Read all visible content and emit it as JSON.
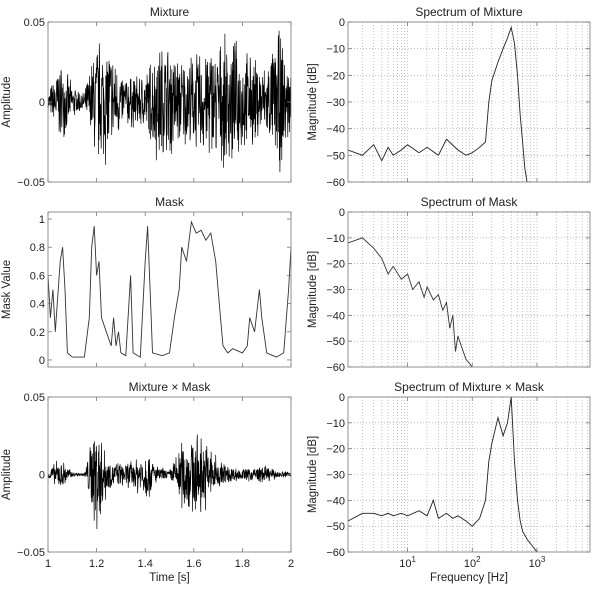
{
  "chart_data": [
    {
      "type": "line",
      "title": "Mixture",
      "xlabel": "",
      "ylabel": "Amplitude",
      "xlim": [
        1,
        2
      ],
      "ylim": [
        -0.05,
        0.05
      ],
      "xticks": [
        1,
        1.2,
        1.4,
        1.6,
        1.8,
        2
      ],
      "show_xtick_labels": false,
      "yticks": [
        -0.05,
        0,
        0.05
      ],
      "ytick_labels": [
        "−0.05",
        "0",
        "0.05"
      ],
      "grid": false,
      "color": "#000000",
      "envelope_t": [
        1.0,
        1.05,
        1.1,
        1.15,
        1.2,
        1.25,
        1.3,
        1.35,
        1.4,
        1.45,
        1.5,
        1.55,
        1.6,
        1.65,
        1.7,
        1.75,
        1.8,
        1.85,
        1.9,
        1.95,
        2.0
      ],
      "envelope_amp": [
        0.006,
        0.028,
        0.012,
        0.006,
        0.045,
        0.042,
        0.02,
        0.018,
        0.02,
        0.042,
        0.04,
        0.03,
        0.032,
        0.04,
        0.04,
        0.045,
        0.036,
        0.03,
        0.025,
        0.05,
        0.02
      ]
    },
    {
      "type": "line",
      "title": "Mask",
      "xlabel": "",
      "ylabel": "Mask Value",
      "xlim": [
        1,
        2
      ],
      "ylim": [
        -0.05,
        1.05
      ],
      "xticks": [
        1,
        1.2,
        1.4,
        1.6,
        1.8,
        2
      ],
      "show_xtick_labels": false,
      "yticks": [
        0,
        0.2,
        0.4,
        0.6,
        0.8,
        1
      ],
      "ytick_labels": [
        "0",
        "0.2",
        "0.4",
        "0.6",
        "0.8",
        "1"
      ],
      "grid": false,
      "color": "#333333",
      "t": [
        1.0,
        1.01,
        1.02,
        1.03,
        1.05,
        1.06,
        1.07,
        1.08,
        1.1,
        1.15,
        1.17,
        1.18,
        1.19,
        1.2,
        1.21,
        1.22,
        1.24,
        1.26,
        1.27,
        1.28,
        1.29,
        1.3,
        1.32,
        1.34,
        1.35,
        1.38,
        1.4,
        1.41,
        1.42,
        1.43,
        1.47,
        1.5,
        1.52,
        1.54,
        1.55,
        1.57,
        1.59,
        1.61,
        1.63,
        1.65,
        1.67,
        1.69,
        1.7,
        1.71,
        1.72,
        1.74,
        1.76,
        1.8,
        1.82,
        1.83,
        1.85,
        1.87,
        1.88,
        1.9,
        1.94,
        1.97,
        1.99,
        2.0
      ],
      "values": [
        0.6,
        0.3,
        0.5,
        0.2,
        0.7,
        0.8,
        0.5,
        0.05,
        0.02,
        0.02,
        0.3,
        0.8,
        0.95,
        0.6,
        0.7,
        0.3,
        0.2,
        0.1,
        0.3,
        0.1,
        0.2,
        0.05,
        0.03,
        0.6,
        0.05,
        0.02,
        0.7,
        0.95,
        0.5,
        0.05,
        0.03,
        0.05,
        0.3,
        0.5,
        0.8,
        0.7,
        0.98,
        0.9,
        0.92,
        0.85,
        0.9,
        0.7,
        0.5,
        0.3,
        0.1,
        0.05,
        0.08,
        0.05,
        0.1,
        0.3,
        0.2,
        0.5,
        0.3,
        0.05,
        0.02,
        0.05,
        0.5,
        0.8
      ]
    },
    {
      "type": "line",
      "title": "Mixture × Mask",
      "xlabel": "Time [s]",
      "ylabel": "Amplitude",
      "xlim": [
        1,
        2
      ],
      "ylim": [
        -0.05,
        0.05
      ],
      "xticks": [
        1,
        1.2,
        1.4,
        1.6,
        1.8,
        2
      ],
      "xtick_labels": [
        "1",
        "1.2",
        "1.4",
        "1.6",
        "1.8",
        "2"
      ],
      "show_xtick_labels": true,
      "yticks": [
        -0.05,
        0,
        0.05
      ],
      "ytick_labels": [
        "−0.05",
        "0",
        "0.05"
      ],
      "grid": false,
      "color": "#000000",
      "envelope_t": [
        1.0,
        1.05,
        1.1,
        1.15,
        1.2,
        1.25,
        1.3,
        1.35,
        1.4,
        1.45,
        1.5,
        1.55,
        1.6,
        1.65,
        1.7,
        1.75,
        1.8,
        1.85,
        1.9,
        1.95,
        2.0
      ],
      "envelope_amp": [
        0.003,
        0.012,
        0.002,
        0.001,
        0.045,
        0.01,
        0.008,
        0.01,
        0.02,
        0.006,
        0.003,
        0.025,
        0.03,
        0.025,
        0.012,
        0.006,
        0.004,
        0.006,
        0.006,
        0.002,
        0.003
      ]
    },
    {
      "type": "line",
      "title": "Spectrum of Mixture",
      "xlabel": "",
      "ylabel": "Magnitude [dB]",
      "xscale": "log",
      "xlim": [
        1.2,
        6600
      ],
      "ylim": [
        -60,
        0
      ],
      "xticks": [
        10,
        100,
        1000
      ],
      "show_xtick_labels": false,
      "yticks": [
        -60,
        -50,
        -40,
        -30,
        -20,
        -10,
        0
      ],
      "ytick_labels": [
        "−60",
        "−50",
        "−40",
        "−30",
        "−20",
        "−10",
        "0"
      ],
      "grid": true,
      "color": "#222222",
      "freq": [
        1.2,
        2,
        3,
        4,
        5,
        6,
        8,
        10,
        15,
        20,
        30,
        40,
        60,
        80,
        100,
        130,
        160,
        180,
        200,
        250,
        300,
        350,
        400,
        450,
        500,
        550,
        600,
        650,
        700,
        800
      ],
      "db": [
        -48,
        -50,
        -46,
        -52,
        -47,
        -50,
        -48,
        -46,
        -49,
        -47,
        -50,
        -44,
        -48,
        -50,
        -49,
        -47,
        -45,
        -30,
        -22,
        -15,
        -10,
        -6,
        -2,
        -8,
        -20,
        -35,
        -45,
        -55,
        -60,
        -60
      ]
    },
    {
      "type": "line",
      "title": "Spectrum of Mask",
      "xlabel": "",
      "ylabel": "Magnitude [dB]",
      "xscale": "log",
      "xlim": [
        1.2,
        6600
      ],
      "ylim": [
        -60,
        0
      ],
      "xticks": [
        10,
        100,
        1000
      ],
      "show_xtick_labels": false,
      "yticks": [
        -60,
        -50,
        -40,
        -30,
        -20,
        -10,
        0
      ],
      "ytick_labels": [
        "−60",
        "−50",
        "−40",
        "−30",
        "−20",
        "−10",
        "0"
      ],
      "grid": true,
      "color": "#333333",
      "freq": [
        1.2,
        2,
        3,
        4,
        5,
        6,
        8,
        10,
        12,
        15,
        18,
        20,
        25,
        30,
        35,
        40,
        45,
        50,
        55,
        60,
        70,
        80,
        100
      ],
      "db": [
        -12,
        -10,
        -14,
        -18,
        -24,
        -21,
        -26,
        -24,
        -30,
        -27,
        -33,
        -29,
        -34,
        -32,
        -38,
        -35,
        -45,
        -40,
        -54,
        -48,
        -53,
        -57,
        -60
      ]
    },
    {
      "type": "line",
      "title": "Spectrum of Mixture × Mask",
      "xlabel": "Frequency [Hz]",
      "ylabel": "Magnitude [dB]",
      "xscale": "log",
      "xlim": [
        1.2,
        6600
      ],
      "ylim": [
        -60,
        0
      ],
      "xticks": [
        10,
        100,
        1000
      ],
      "xtick_labels": [
        "1",
        "2",
        "3"
      ],
      "show_xtick_labels": true,
      "yticks": [
        -60,
        -50,
        -40,
        -30,
        -20,
        -10,
        0
      ],
      "ytick_labels": [
        "−60",
        "−50",
        "−40",
        "−30",
        "−20",
        "−10",
        "0"
      ],
      "grid": true,
      "color": "#222222",
      "freq": [
        1.2,
        2,
        3,
        4,
        5,
        6,
        8,
        10,
        15,
        20,
        25,
        30,
        40,
        50,
        60,
        80,
        100,
        130,
        160,
        180,
        200,
        250,
        300,
        350,
        400,
        450,
        500,
        550,
        600,
        700,
        1000
      ],
      "db": [
        -48,
        -45,
        -45,
        -46,
        -45,
        -46,
        -45,
        -46,
        -44,
        -46,
        -40,
        -47,
        -45,
        -47,
        -46,
        -48,
        -50,
        -47,
        -40,
        -25,
        -18,
        -8,
        -15,
        -10,
        0,
        -25,
        -40,
        -48,
        -52,
        -55,
        -60
      ]
    }
  ]
}
